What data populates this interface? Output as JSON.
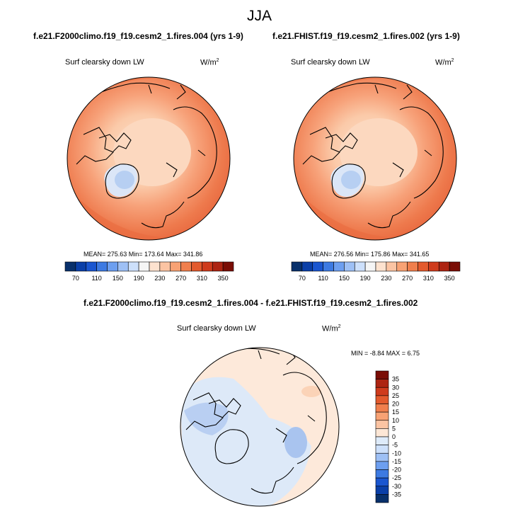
{
  "page": {
    "title": "JJA"
  },
  "panels": [
    {
      "case": "f.e21.F2000climo.f19_f19.cesm2_1.fires.004 (yrs 1-9)",
      "variable": "Surf clearsky down LW",
      "units": "W/m",
      "units_exp": "2",
      "stats": "MEAN= 275.63  Min= 173.64  Max= 341.86"
    },
    {
      "case": "f.e21.FHIST.f19_f19.cesm2_1.fires.002 (yrs 1-9)",
      "variable": "Surf clearsky down LW",
      "units": "W/m",
      "units_exp": "2",
      "stats": "MEAN= 276.56  Min= 175.86  Max= 341.65"
    },
    {
      "case": "f.e21.F2000climo.f19_f19.cesm2_1.fires.004 - f.e21.FHIST.f19_f19.cesm2_1.fires.002",
      "variable": "Surf clearsky down LW",
      "units": "W/m",
      "units_exp": "2",
      "stats": "MIN =  -8.84 MAX =   6.75"
    }
  ],
  "chart_data": [
    {
      "type": "heatmap",
      "title": "f.e21.F2000climo.f19_f19.cesm2_1.fires.004 (yrs 1-9)",
      "variable": "Surf clearsky down LW",
      "units": "W/m2",
      "projection": "north polar stereographic",
      "mean": 275.63,
      "min": 173.64,
      "max": 341.86,
      "colorbar": {
        "levels": [
          70,
          110,
          150,
          190,
          230,
          270,
          310,
          350
        ],
        "tick_labels": [
          "70",
          "110",
          "150",
          "190",
          "230",
          "270",
          "310",
          "350"
        ],
        "colors": [
          "#08306b",
          "#0a3fa8",
          "#1a56d0",
          "#3d7ae2",
          "#6d9ff0",
          "#9ec0f5",
          "#cde0fb",
          "#f5f5f5",
          "#fde2cf",
          "#fbc4a3",
          "#f8a274",
          "#f07f4d",
          "#e35a2d",
          "#cf3b1c",
          "#ad2412",
          "#7a0d05"
        ]
      }
    },
    {
      "type": "heatmap",
      "title": "f.e21.FHIST.f19_f19.cesm2_1.fires.002 (yrs 1-9)",
      "variable": "Surf clearsky down LW",
      "units": "W/m2",
      "projection": "north polar stereographic",
      "mean": 276.56,
      "min": 175.86,
      "max": 341.65,
      "colorbar": {
        "levels": [
          70,
          110,
          150,
          190,
          230,
          270,
          310,
          350
        ],
        "tick_labels": [
          "70",
          "110",
          "150",
          "190",
          "230",
          "270",
          "310",
          "350"
        ],
        "colors": [
          "#08306b",
          "#0a3fa8",
          "#1a56d0",
          "#3d7ae2",
          "#6d9ff0",
          "#9ec0f5",
          "#cde0fb",
          "#f5f5f5",
          "#fde2cf",
          "#fbc4a3",
          "#f8a274",
          "#f07f4d",
          "#e35a2d",
          "#cf3b1c",
          "#ad2412",
          "#7a0d05"
        ]
      }
    },
    {
      "type": "heatmap",
      "title": "f.e21.F2000climo.f19_f19.cesm2_1.fires.004 - f.e21.FHIST.f19_f19.cesm2_1.fires.002",
      "variable": "Surf clearsky down LW",
      "units": "W/m2",
      "projection": "north polar stereographic",
      "min": -8.84,
      "max": 6.75,
      "colorbar": {
        "orientation": "vertical",
        "levels": [
          -35,
          -30,
          -25,
          -20,
          -15,
          -10,
          -5,
          0,
          5,
          10,
          15,
          20,
          25,
          30,
          35
        ],
        "tick_labels": [
          "-35",
          "-30",
          "-25",
          "-20",
          "-15",
          "-10",
          "-5",
          "0",
          "5",
          "10",
          "15",
          "20",
          "25",
          "30",
          "35"
        ],
        "colors": [
          "#08306b",
          "#0a3fa8",
          "#1a56d0",
          "#3d7ae2",
          "#6d9ff0",
          "#9ec0f5",
          "#cde0fb",
          "#deebfa",
          "#fde7d6",
          "#fbc4a3",
          "#f8a274",
          "#f07f4d",
          "#e35a2d",
          "#cf3b1c",
          "#ad2412",
          "#7a0d05"
        ]
      }
    }
  ]
}
